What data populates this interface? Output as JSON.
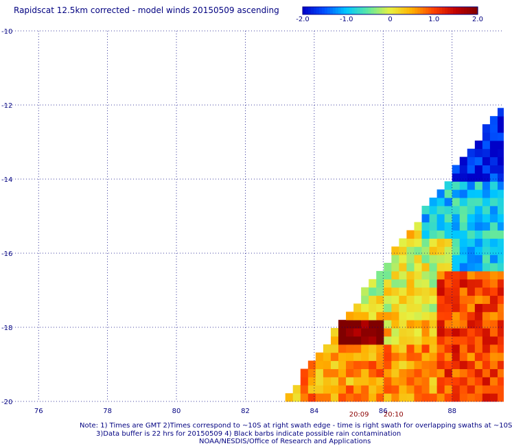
{
  "title": "Rapidscat 12.5km corrected - model winds 20150509 ascending",
  "colorbar": {
    "ticks": [
      "-2.0",
      "-1.0",
      "0",
      "1.0",
      "2.0"
    ],
    "range": [
      -2.0,
      2.0
    ],
    "colors": [
      "#0000c8",
      "#0050ff",
      "#00c8ff",
      "#60e8a0",
      "#e8f040",
      "#ffb000",
      "#ff4000",
      "#c00000",
      "#800000"
    ]
  },
  "notes": [
    "Note: 1) Times are GMT 2)Times correspond to ~10S at right swath edge - time is right swath for overlapping swaths at ~10S",
    "3)Data buffer is 22 hrs for 20150509 4) Black barbs indicate possible rain contamination",
    "NOAA/NESDIS/Office of Research and Applications"
  ],
  "chart_data": {
    "type": "heatmap",
    "title": "Rapidscat 12.5km corrected - model winds 20150509 ascending",
    "x_ticks": [
      "76",
      "78",
      "80",
      "82",
      "84",
      "86",
      "88"
    ],
    "y_ticks": [
      "-10",
      "-12",
      "-14",
      "-16",
      "-18",
      "-20"
    ],
    "x_range": [
      75,
      89.5
    ],
    "y_range": [
      -20,
      -10
    ],
    "grid": true,
    "time_labels": [
      {
        "text": "20:09",
        "lon": 85.3
      },
      {
        "text": "20:10",
        "lon": 86.3
      }
    ],
    "swath_edge": [
      [
        83.1,
        -20
      ],
      [
        89.5,
        -12
      ]
    ],
    "value_regions": [
      {
        "name": "northeast strong negative",
        "lon": [
          88.0,
          89.5
        ],
        "lat": [
          -15.0,
          -12.0
        ],
        "value": -1.8
      },
      {
        "name": "north band negative",
        "lon": [
          87.2,
          89.5
        ],
        "lat": [
          -16.5,
          -14.0
        ],
        "value": -0.9
      },
      {
        "name": "central neutral",
        "lon": [
          85.0,
          88.0
        ],
        "lat": [
          -17.5,
          -15.5
        ],
        "value": 0.0
      },
      {
        "name": "southeast positive",
        "lon": [
          87.5,
          89.5
        ],
        "lat": [
          -20.0,
          -16.5
        ],
        "value": 1.0
      },
      {
        "name": "southwest strong positive",
        "lon": [
          84.6,
          86.0
        ],
        "lat": [
          -18.8,
          -17.8
        ],
        "value": 2.0
      },
      {
        "name": "south central positive",
        "lon": [
          83.5,
          87.5
        ],
        "lat": [
          -20.0,
          -18.5
        ],
        "value": 0.6
      }
    ]
  }
}
